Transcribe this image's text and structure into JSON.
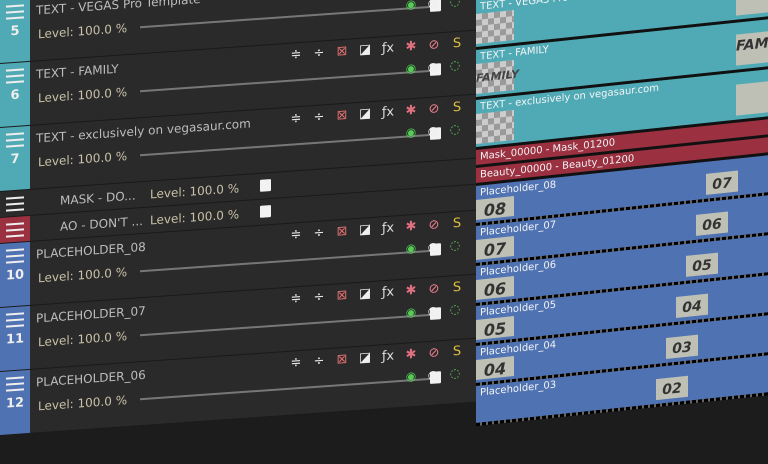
{
  "colors": {
    "text_track": "#4faab5",
    "mask_track": "#9a3040",
    "video_track": "#4f72b3",
    "header_bg": "#2a2a2a"
  },
  "header_icons": [
    "move-icon",
    "compositing-icon",
    "mute-icon",
    "motion-blur-icon",
    "fx-icon",
    "gear-icon",
    "bypass-icon",
    "solo-icon"
  ],
  "tracks": [
    {
      "number": "5",
      "name": "TEXT - VEGAS Pro Template",
      "level": "Level: 100.0 %",
      "color": "#4faab5",
      "event_label": "TEXT - VEGAS Pro Template",
      "thumb": "",
      "end_thumb": ""
    },
    {
      "number": "6",
      "name": "TEXT - FAMILY",
      "level": "Level: 100.0 %",
      "color": "#4faab5",
      "event_label": "TEXT - FAMILY",
      "thumb": "FAMILY",
      "end_thumb": "FAMILY"
    },
    {
      "number": "7",
      "name": "TEXT - exclusively on vegasaur.com",
      "level": "Level: 100.0 %",
      "color": "#4faab5",
      "event_label": "TEXT - exclusively on vegasaur.com",
      "thumb": "",
      "end_thumb": ""
    }
  ],
  "mask_tracks": [
    {
      "name": "MASK - DO...",
      "level": "Level: 100.0 %",
      "color": "#2a2a2a",
      "event_label": "Mask_00000 - Mask_01200",
      "event_color": "#9a3040"
    },
    {
      "name": "AO - DON'T ...",
      "level": "Level: 100.0 %",
      "color": "#9a3040",
      "event_label": "Beauty_00000 - Beauty_01200",
      "event_color": "#9a3040"
    }
  ],
  "placeholders": [
    {
      "number": "10",
      "name": "PLACEHOLDER_08",
      "level": "Level: 100.0 %",
      "event_label": "Placeholder_08",
      "thumb": "08",
      "end_thumb": "07"
    },
    {
      "number": "11",
      "name": "PLACEHOLDER_07",
      "level": "Level: 100.0 %",
      "event_label": "Placeholder_07",
      "thumb": "07",
      "end_thumb": "06"
    },
    {
      "number": "12",
      "name": "PLACEHOLDER_06",
      "level": "Level: 100.0 %",
      "event_label": "Placeholder_06",
      "thumb": "06",
      "end_thumb": "05"
    },
    {
      "number": "",
      "name": "",
      "level": "",
      "event_label": "Placeholder_05",
      "thumb": "05",
      "end_thumb": "04"
    },
    {
      "number": "",
      "name": "",
      "level": "",
      "event_label": "Placeholder_04",
      "thumb": "04",
      "end_thumb": "03"
    },
    {
      "number": "",
      "name": "",
      "level": "",
      "event_label": "Placeholder_03",
      "thumb": "",
      "end_thumb": "02"
    }
  ],
  "top_end_thumb": "08"
}
